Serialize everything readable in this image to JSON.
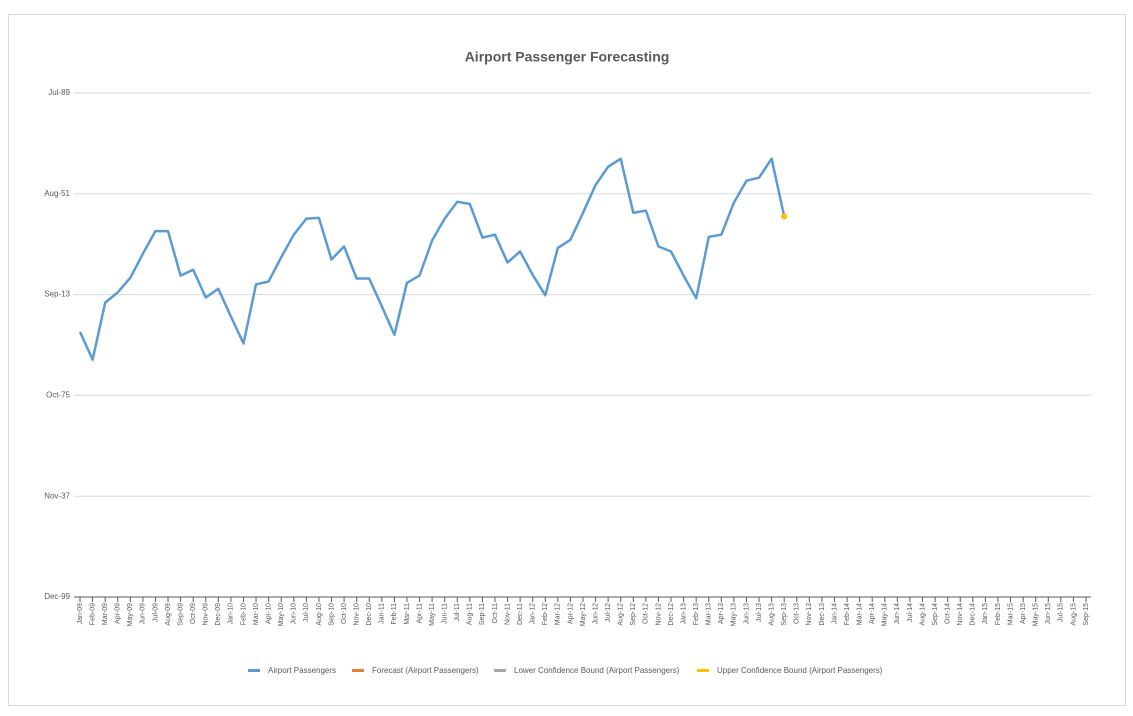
{
  "chart_data": {
    "type": "line",
    "title": "Airport Passenger Forecasting",
    "categories": [
      "Jan-09",
      "Feb-09",
      "Mar-09",
      "Apr-09",
      "May-09",
      "Jun-09",
      "Jul-09",
      "Aug-09",
      "Sep-09",
      "Oct-09",
      "Nov-09",
      "Dec-09",
      "Jan-10",
      "Feb-10",
      "Mar-10",
      "Apr-10",
      "May-10",
      "Jun-10",
      "Jul-10",
      "Aug-10",
      "Sep-10",
      "Oct-10",
      "Nov-10",
      "Dec-10",
      "Jan-11",
      "Feb-11",
      "Mar-11",
      "Apr-11",
      "May-11",
      "Jun-11",
      "Jul-11",
      "Aug-11",
      "Sep-11",
      "Oct-11",
      "Nov-11",
      "Dec-11",
      "Jan-12",
      "Feb-12",
      "Mar-12",
      "Apr-12",
      "May-12",
      "Jun-12",
      "Jul-12",
      "Aug-12",
      "Sep-12",
      "Oct-12",
      "Nov-12",
      "Dec-12",
      "Jan-13",
      "Feb-13",
      "Mar-13",
      "Apr-13",
      "May-13",
      "Jun-13",
      "Jul-13",
      "Aug-13",
      "Sep-13",
      "Oct-13",
      "Nov-13",
      "Dec-13",
      "Jan-14",
      "Feb-14",
      "Mar-14",
      "Apr-14",
      "May-14",
      "Jun-14",
      "Jul-14",
      "Aug-14",
      "Sep-14",
      "Oct-14",
      "Nov-14",
      "Dec-14",
      "Jan-15",
      "Feb-15",
      "Mar-15",
      "Apr-15",
      "May-15",
      "Jun-15",
      "Jul-15",
      "Aug-15",
      "Sep-15"
    ],
    "series": [
      {
        "name": "Airport Passengers",
        "color": "#5b9bd5",
        "values": [
          36300,
          32500,
          40300,
          41700,
          43700,
          47000,
          50100,
          50100,
          44000,
          44800,
          41000,
          42200,
          38400,
          34700,
          42800,
          43200,
          46500,
          49600,
          51800,
          51900,
          46200,
          48000,
          43600,
          43600,
          39800,
          35900,
          43000,
          44000,
          48800,
          51800,
          54100,
          53800,
          49200,
          49600,
          45800,
          47300,
          44100,
          41300,
          47800,
          48900,
          52600,
          56400,
          58900,
          60000,
          52600,
          52900,
          48000,
          47300,
          44000,
          40900,
          49300,
          49600,
          54000,
          57000,
          57400,
          60000,
          52100,
          null,
          null,
          null,
          null,
          null,
          null,
          null,
          null,
          null,
          null,
          null,
          null,
          null,
          null,
          null,
          null,
          null,
          null,
          null,
          null,
          null,
          null,
          null,
          null
        ]
      },
      {
        "name": "Forecast (Airport Passengers)",
        "color": "#ed7d31",
        "values": [
          null,
          null,
          null,
          null,
          null,
          null,
          null,
          null,
          null,
          null,
          null,
          null,
          null,
          null,
          null,
          null,
          null,
          null,
          null,
          null,
          null,
          null,
          null,
          null,
          null,
          null,
          null,
          null,
          null,
          null,
          null,
          null,
          null,
          null,
          null,
          null,
          null,
          null,
          null,
          null,
          null,
          null,
          null,
          null,
          null,
          null,
          null,
          null,
          null,
          null,
          null,
          null,
          null,
          null,
          null,
          null,
          52100,
          null,
          null,
          null,
          null,
          null,
          null,
          null,
          null,
          null,
          null,
          null,
          null,
          null,
          null,
          null,
          null,
          null,
          null,
          null,
          null,
          null,
          null,
          null,
          null
        ]
      },
      {
        "name": "Lower Confidence Bound (Airport Passengers)",
        "color": "#a5a5a5",
        "values": [
          null,
          null,
          null,
          null,
          null,
          null,
          null,
          null,
          null,
          null,
          null,
          null,
          null,
          null,
          null,
          null,
          null,
          null,
          null,
          null,
          null,
          null,
          null,
          null,
          null,
          null,
          null,
          null,
          null,
          null,
          null,
          null,
          null,
          null,
          null,
          null,
          null,
          null,
          null,
          null,
          null,
          null,
          null,
          null,
          null,
          null,
          null,
          null,
          null,
          null,
          null,
          null,
          null,
          null,
          null,
          null,
          52100,
          null,
          null,
          null,
          null,
          null,
          null,
          null,
          null,
          null,
          null,
          null,
          null,
          null,
          null,
          null,
          null,
          null,
          null,
          null,
          null,
          null,
          null,
          null,
          null
        ]
      },
      {
        "name": "Upper Confidence Bound (Airport Passengers)",
        "color": "#ffc000",
        "values": [
          null,
          null,
          null,
          null,
          null,
          null,
          null,
          null,
          null,
          null,
          null,
          null,
          null,
          null,
          null,
          null,
          null,
          null,
          null,
          null,
          null,
          null,
          null,
          null,
          null,
          null,
          null,
          null,
          null,
          null,
          null,
          null,
          null,
          null,
          null,
          null,
          null,
          null,
          null,
          null,
          null,
          null,
          null,
          null,
          null,
          null,
          null,
          null,
          null,
          null,
          null,
          null,
          null,
          null,
          null,
          null,
          52100,
          null,
          null,
          null,
          null,
          null,
          null,
          null,
          null,
          null,
          null,
          null,
          null,
          null,
          null,
          null,
          null,
          null,
          null,
          null,
          null,
          null,
          null,
          null,
          null
        ]
      }
    ],
    "ylim": [
      0,
      69000
    ],
    "yticks": [
      {
        "value": 0,
        "label": "Dec-99"
      },
      {
        "value": 13800,
        "label": "Nov-37"
      },
      {
        "value": 27600,
        "label": "Oct-75"
      },
      {
        "value": 41400,
        "label": "Sep-13"
      },
      {
        "value": 55200,
        "label": "Aug-51"
      },
      {
        "value": 69000,
        "label": "Jul-89"
      }
    ],
    "grid": true,
    "legend": "bottom"
  }
}
